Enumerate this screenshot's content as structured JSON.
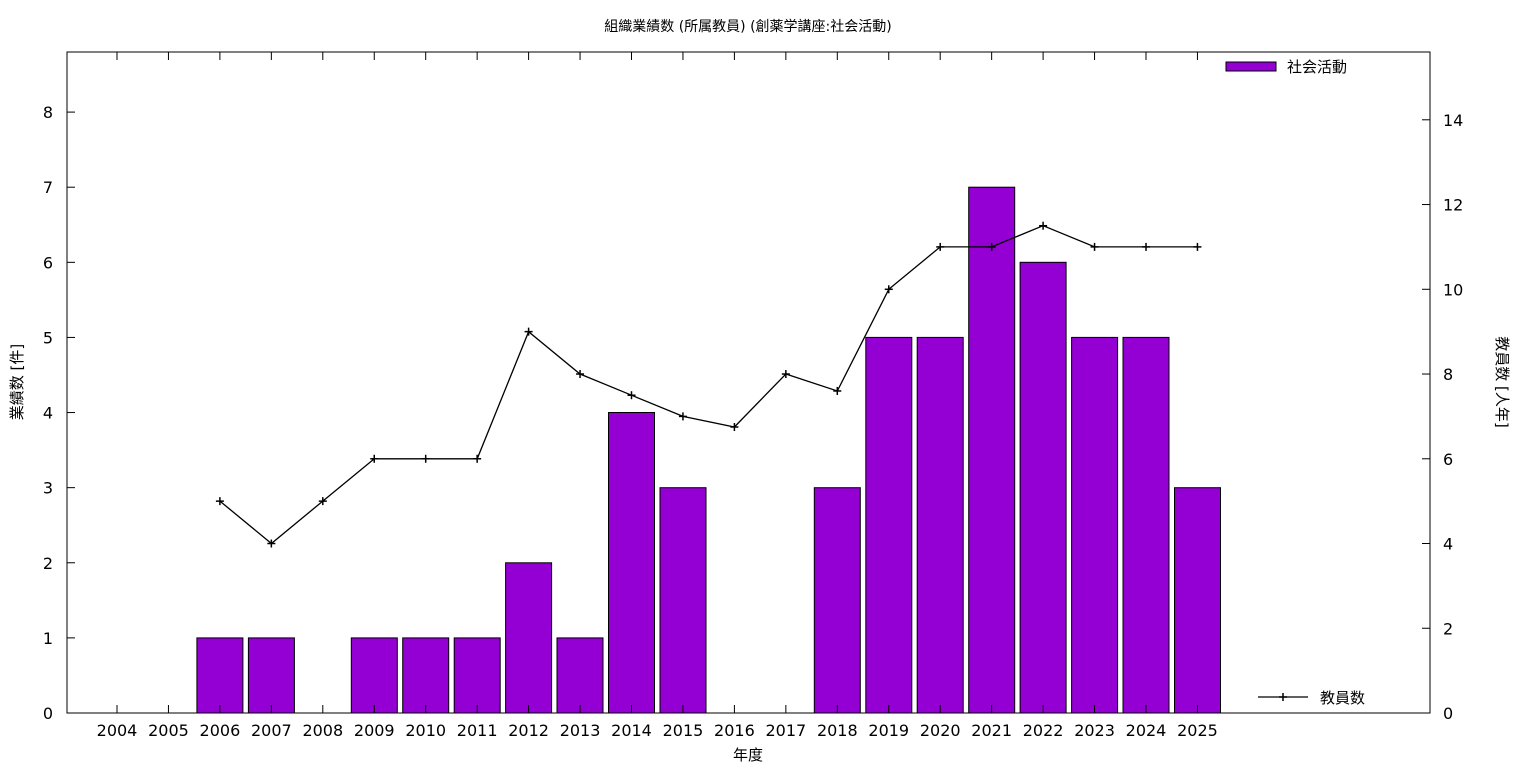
{
  "chart_data": {
    "type": "bar",
    "title": "組織業績数 (所属教員) (創薬学講座:社会活動)",
    "xlabel": "年度",
    "ylabel": "業績数 [件]",
    "y2label": "教員数 [人年]",
    "categories": [
      "2004",
      "2005",
      "2006",
      "2007",
      "2008",
      "2009",
      "2010",
      "2011",
      "2012",
      "2013",
      "2014",
      "2015",
      "2016",
      "2017",
      "2018",
      "2019",
      "2020",
      "2021",
      "2022",
      "2023",
      "2024",
      "2025"
    ],
    "series": [
      {
        "name": "社会活動",
        "type": "bar",
        "axis": "left",
        "color": "#9400d3",
        "values": [
          0,
          0,
          1,
          1,
          0,
          1,
          1,
          1,
          2,
          1,
          4,
          3,
          0,
          0,
          3,
          5,
          5,
          7,
          6,
          5,
          5,
          3
        ]
      },
      {
        "name": "教員数",
        "type": "line",
        "axis": "right",
        "color": "#000000",
        "values": [
          null,
          null,
          5,
          4,
          5,
          6,
          6,
          6,
          9,
          8,
          7.5,
          7,
          6.75,
          8,
          7.6,
          10,
          11,
          11,
          11.5,
          11,
          11,
          11
        ]
      }
    ],
    "ylim": [
      0,
      8.8
    ],
    "yticks": [
      0,
      1,
      2,
      3,
      4,
      5,
      6,
      7,
      8
    ],
    "y2lim": [
      0,
      15.6
    ],
    "y2ticks": [
      0,
      2,
      4,
      6,
      8,
      10,
      12,
      14
    ],
    "legend": {
      "bar": "top-right",
      "line": "bottom-right"
    },
    "grid": false
  }
}
